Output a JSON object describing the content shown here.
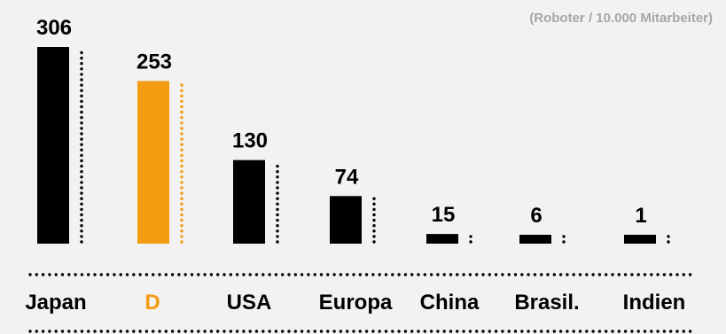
{
  "chart_data": {
    "type": "bar",
    "title": "",
    "unit_note": "(Roboter / 10.000 Mitarbeiter)",
    "xlabel": "",
    "ylabel": "",
    "categories": [
      "Japan",
      "D",
      "USA",
      "Europa",
      "China",
      "Brasil.",
      "Indien"
    ],
    "values": [
      306,
      253,
      130,
      74,
      15,
      6,
      1
    ],
    "ylim": [
      0,
      306
    ],
    "highlight_index": 1,
    "legend": "none",
    "grid": false
  },
  "colors": {
    "bar": "#000000",
    "highlight": "#f39c12",
    "label": "#000000",
    "unit_note": "#a6a6a6",
    "dots": "#000000",
    "background": "#f2f2f2"
  }
}
